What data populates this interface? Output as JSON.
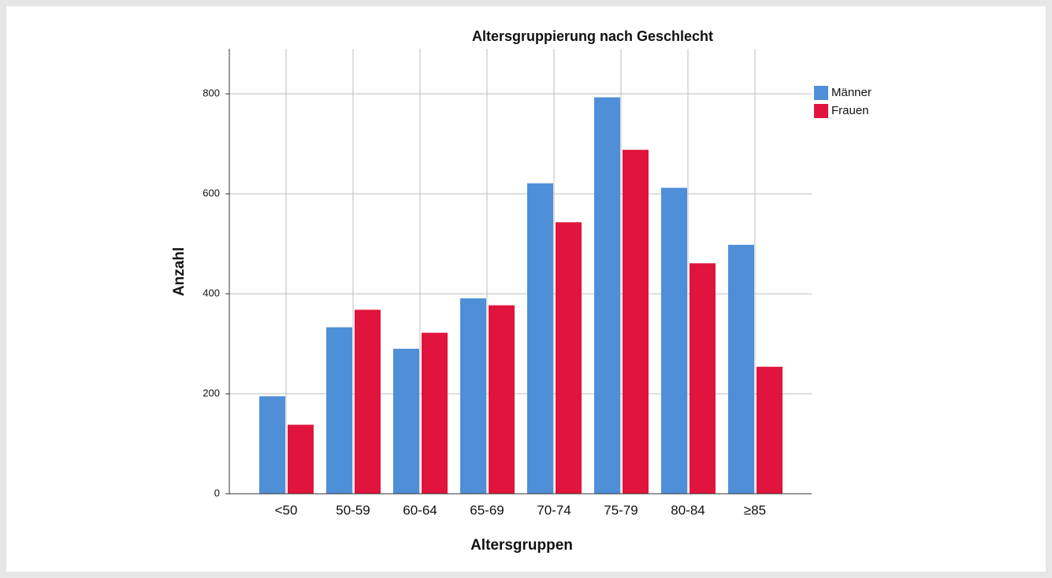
{
  "chart_data": {
    "type": "bar",
    "title": "Altersgruppierung nach Geschlecht",
    "x_label": "Altersgruppen",
    "y_label": "Anzahl",
    "categories": [
      "<50",
      "50-59",
      "60-64",
      "65-69",
      "70-74",
      "75-79",
      "80-84",
      "≥85"
    ],
    "series": [
      {
        "name": "Männer",
        "color": "#4f8fd8",
        "values": [
          195,
          333,
          290,
          391,
          621,
          793,
          612,
          498
        ]
      },
      {
        "name": "Frauen",
        "color": "#e0143c",
        "values": [
          138,
          368,
          322,
          377,
          543,
          688,
          461,
          254
        ]
      }
    ],
    "ylim": [
      0,
      890
    ],
    "yticks": [
      0,
      200,
      400,
      600,
      800
    ],
    "grid": true,
    "legend": "right"
  }
}
